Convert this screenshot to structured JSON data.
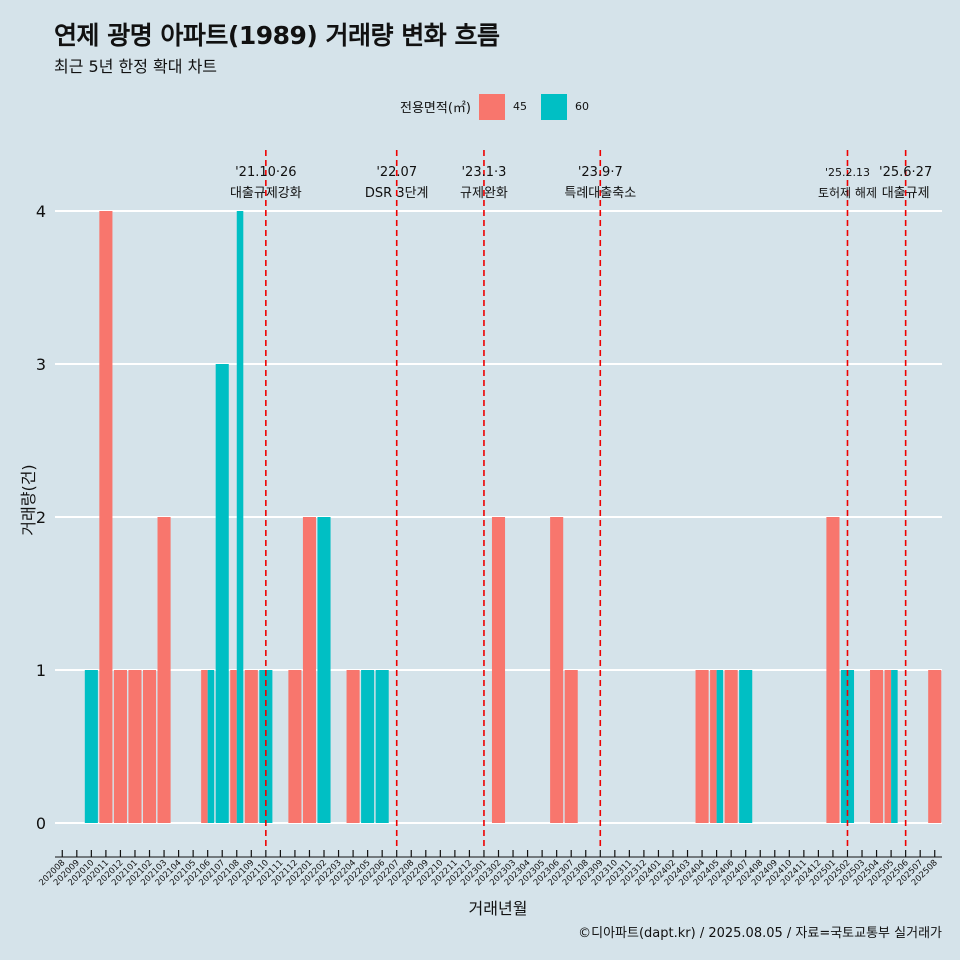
{
  "title": "연제 광명 아파트(1989) 거래량 변화 흐름",
  "subtitle": "최근 5년 한정 확대 차트",
  "legend": {
    "title": "전용면적(㎡)",
    "items": [
      {
        "label": "45",
        "color": "#f8766d"
      },
      {
        "label": "60",
        "color": "#00bfc4"
      }
    ]
  },
  "caption": "©디아파트(dapt.kr) / 2025.08.05 / 자료=국토교통부 실거래가",
  "chart_data": {
    "type": "bar",
    "xlabel": "거래년월",
    "ylabel": "거래량(건)",
    "ylim": [
      0,
      4
    ],
    "yticks": [
      0,
      1,
      2,
      3,
      4
    ],
    "grid": true,
    "legend_position": "top",
    "categories": [
      "202008",
      "202009",
      "202010",
      "202011",
      "202012",
      "202101",
      "202102",
      "202103",
      "202104",
      "202105",
      "202106",
      "202107",
      "202108",
      "202109",
      "202110",
      "202111",
      "202112",
      "202201",
      "202202",
      "202203",
      "202204",
      "202205",
      "202206",
      "202207",
      "202208",
      "202209",
      "202210",
      "202211",
      "202212",
      "202301",
      "202302",
      "202303",
      "202304",
      "202305",
      "202306",
      "202307",
      "202308",
      "202309",
      "202310",
      "202311",
      "202312",
      "202401",
      "202402",
      "202403",
      "202404",
      "202405",
      "202406",
      "202407",
      "202408",
      "202409",
      "202410",
      "202411",
      "202412",
      "202501",
      "202502",
      "202503",
      "202504",
      "202505",
      "202506",
      "202507",
      "202508"
    ],
    "series": [
      {
        "name": "45",
        "color": "#f8766d",
        "values": [
          0,
          0,
          0,
          4,
          1,
          1,
          1,
          2,
          0,
          0,
          1,
          0,
          1,
          1,
          0,
          0,
          1,
          2,
          0,
          0,
          1,
          0,
          0,
          0,
          0,
          0,
          0,
          0,
          0,
          0,
          2,
          0,
          0,
          0,
          2,
          1,
          0,
          0,
          0,
          0,
          0,
          0,
          0,
          0,
          1,
          1,
          1,
          0,
          0,
          0,
          0,
          0,
          0,
          2,
          0,
          0,
          1,
          1,
          0,
          0,
          1
        ]
      },
      {
        "name": "60",
        "color": "#00bfc4",
        "values": [
          0,
          0,
          1,
          0,
          0,
          0,
          0,
          0,
          0,
          0,
          1,
          3,
          4,
          0,
          1,
          0,
          0,
          0,
          2,
          0,
          0,
          1,
          1,
          0,
          0,
          0,
          0,
          0,
          0,
          0,
          0,
          0,
          0,
          0,
          0,
          0,
          0,
          0,
          0,
          0,
          0,
          0,
          0,
          0,
          0,
          1,
          0,
          1,
          0,
          0,
          0,
          0,
          0,
          0,
          1,
          0,
          0,
          1,
          0,
          0,
          0
        ]
      }
    ],
    "annotations": [
      {
        "at": "202110",
        "date": "'21.10·26",
        "label": "대출규제강화"
      },
      {
        "at": "202207",
        "date": "'22.07",
        "label": "DSR 3단계"
      },
      {
        "at": "202301",
        "date": "'23.1·3",
        "label": "규제완화"
      },
      {
        "at": "202309",
        "date": "'23.9·7",
        "label": "특례대출축소"
      },
      {
        "at": "202502",
        "date": "'25.2.13",
        "label": "토허제 해제"
      },
      {
        "at": "202506",
        "date": "'25.6·27",
        "label": "대출규제"
      }
    ]
  }
}
